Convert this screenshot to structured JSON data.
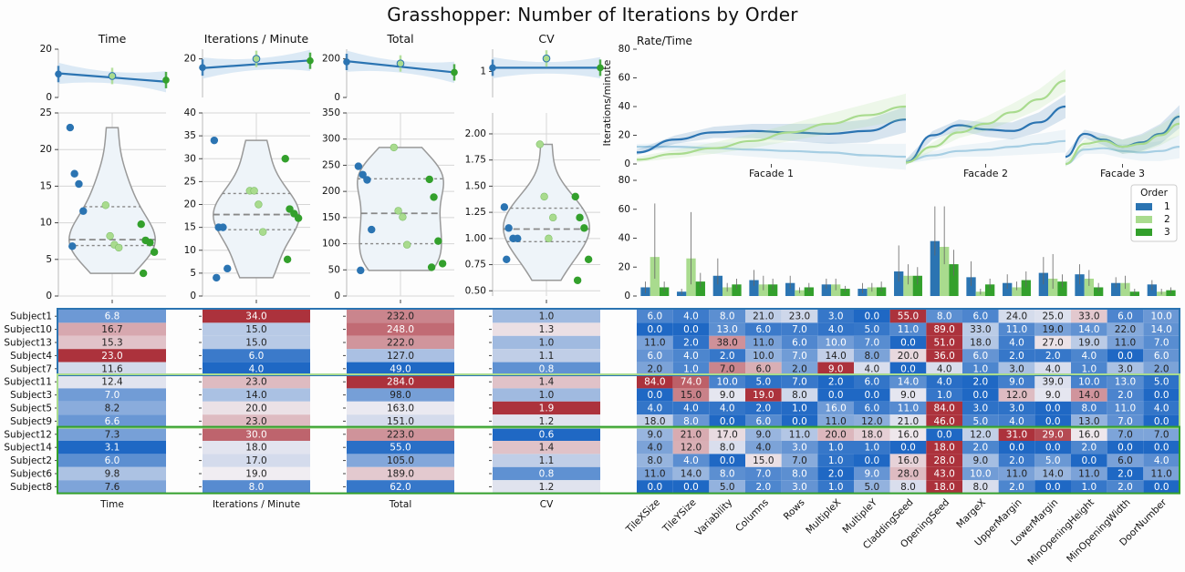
{
  "title": "Grasshopper: Number of Iterations by Order",
  "colors": {
    "order1": "#2b74b2",
    "order2": "#a9db8e",
    "order3": "#33a02c",
    "order1_light": "#a6cee3",
    "band": "#cfe1f2",
    "violin_fill": "#eef4f9",
    "violin_stroke": "#999999"
  },
  "chart_data": [
    {
      "type": "line",
      "title": "Time",
      "ylim": [
        0,
        20
      ],
      "yticks": [
        0,
        20
      ],
      "points": [
        {
          "x": 0,
          "y": 9.7
        },
        {
          "x": 1,
          "y": 8.9
        },
        {
          "x": 2,
          "y": 7.2
        }
      ],
      "trend": [
        10.0,
        6.5
      ]
    },
    {
      "type": "line",
      "title": "Iterations / Minute",
      "ylim": [
        0,
        25
      ],
      "yticks": [
        20
      ],
      "points": [
        {
          "x": 0,
          "y": 15.5
        },
        {
          "x": 1,
          "y": 20.0
        },
        {
          "x": 2,
          "y": 19.0
        }
      ],
      "trend": [
        15.2,
        19.2
      ]
    },
    {
      "type": "line",
      "title": "Total",
      "ylim": [
        0,
        250
      ],
      "yticks": [
        0,
        200
      ],
      "points": [
        {
          "x": 0,
          "y": 184
        },
        {
          "x": 1,
          "y": 176
        },
        {
          "x": 2,
          "y": 130
        }
      ],
      "trend": [
        188,
        130
      ]
    },
    {
      "type": "line",
      "title": "CV",
      "ylim": [
        0.3,
        1.6
      ],
      "yticks": [
        1
      ],
      "points": [
        {
          "x": 0,
          "y": 1.1
        },
        {
          "x": 1,
          "y": 1.35
        },
        {
          "x": 2,
          "y": 1.1
        }
      ],
      "trend": [
        1.1,
        1.1
      ]
    },
    {
      "type": "scatter",
      "subtype": "violin",
      "ylim": [
        0,
        25
      ],
      "yticks": [
        0,
        5,
        10,
        15,
        20,
        25
      ],
      "quartiles": [
        6.9,
        7.7,
        12.2
      ],
      "points": [
        {
          "order": 1,
          "values": [
            23.0,
            16.7,
            15.3,
            11.6,
            6.8
          ]
        },
        {
          "order": 2,
          "values": [
            12.4,
            8.2,
            7.0,
            6.6
          ]
        },
        {
          "order": 3,
          "values": [
            9.8,
            7.6,
            7.3,
            6.0,
            3.1
          ]
        }
      ]
    },
    {
      "type": "scatter",
      "subtype": "violin",
      "ylim": [
        0,
        40
      ],
      "yticks": [
        0,
        5,
        10,
        15,
        20,
        25,
        30,
        35,
        40
      ],
      "quartiles": [
        14.5,
        17.8,
        22.4
      ],
      "points": [
        {
          "order": 1,
          "values": [
            34.0,
            15.0,
            15.0,
            6.0,
            4.0
          ]
        },
        {
          "order": 2,
          "values": [
            23.0,
            23.0,
            20.0,
            14.0
          ]
        },
        {
          "order": 3,
          "values": [
            30.0,
            19.0,
            18.0,
            17.0,
            8.0
          ]
        }
      ]
    },
    {
      "type": "scatter",
      "subtype": "violin",
      "ylim": [
        0,
        350
      ],
      "yticks": [
        0,
        50,
        100,
        150,
        200,
        250,
        300,
        350
      ],
      "quartiles": [
        100,
        158,
        224
      ],
      "points": [
        {
          "order": 1,
          "values": [
            248.0,
            232.0,
            222.0,
            127.0,
            49.0
          ]
        },
        {
          "order": 2,
          "values": [
            284.0,
            163.0,
            151.0,
            98.0
          ]
        },
        {
          "order": 3,
          "values": [
            223.0,
            189.0,
            105.0,
            62.0,
            55.0
          ]
        }
      ]
    },
    {
      "type": "scatter",
      "subtype": "violin",
      "ylim": [
        0.45,
        2.2
      ],
      "yticks": [
        0.5,
        0.75,
        1.0,
        1.25,
        1.5,
        1.75,
        2.0
      ],
      "quartiles": [
        0.97,
        1.09,
        1.29
      ],
      "points": [
        {
          "order": 1,
          "values": [
            1.3,
            1.1,
            1.0,
            1.0,
            0.8
          ]
        },
        {
          "order": 2,
          "values": [
            1.9,
            1.4,
            1.0,
            1.2
          ]
        },
        {
          "order": 3,
          "values": [
            1.4,
            1.2,
            1.1,
            0.8,
            0.6
          ]
        }
      ]
    },
    {
      "type": "line",
      "title": "Rate/Time",
      "ylabel": "Iterations/minute",
      "ylim": [
        0,
        80
      ],
      "yticks": [
        0,
        20,
        40,
        60,
        80
      ],
      "facets": [
        "Facade 1",
        "Facade 2",
        "Facade 3"
      ],
      "series": [
        {
          "order": 1,
          "facets": [
            [
              8,
              17,
              22,
              23,
              22,
              21,
              23,
              31
            ],
            [
              1,
              20,
              27,
              24,
              23,
              29,
              40
            ],
            [
              5,
              21,
              17,
              12,
              15,
              21,
              33
            ]
          ]
        },
        {
          "order": 2,
          "facets": [
            [
              3,
              7,
              11,
              16,
              22,
              28,
              34,
              40
            ],
            [
              1,
              12,
              22,
              28,
              36,
              45,
              58
            ],
            [
              0,
              14,
              16,
              12,
              14,
              20,
              28
            ]
          ]
        },
        {
          "order": 3,
          "facets": [
            [
              12,
              12,
              11,
              10,
              9,
              8,
              6,
              5
            ],
            [
              2,
              6,
              9,
              10,
              12,
              14,
              16
            ],
            [
              0,
              10,
              11,
              9,
              8,
              9,
              12
            ]
          ]
        }
      ]
    },
    {
      "type": "bar",
      "ylim": [
        0,
        80
      ],
      "yticks": [
        0,
        20,
        40,
        60,
        80
      ],
      "legend_title": "Order",
      "legend": [
        "1",
        "2",
        "3"
      ],
      "legend_position": "right",
      "categories": [
        "TileXSize",
        "TileYSize",
        "Variability",
        "Columns",
        "Rows",
        "MultipleX",
        "MultipleY",
        "CladdingSeed",
        "OpeningSeed",
        "MargeX",
        "UpperMargin",
        "LowerMargin",
        "MinOpeningHeight",
        "MinOpeningWidth",
        "DoorNumber"
      ],
      "series": [
        {
          "name": "1",
          "values": [
            6.0,
            3.0,
            14.0,
            11.0,
            9.0,
            8.0,
            5.0,
            17.0,
            38.0,
            13.0,
            9.0,
            16.0,
            15.0,
            9.0,
            8.0
          ],
          "errors": [
            [
              2,
              10
            ],
            [
              1,
              5
            ],
            [
              8,
              26
            ],
            [
              7,
              18
            ],
            [
              5,
              14
            ],
            [
              5,
              12
            ],
            [
              2,
              9
            ],
            [
              10,
              35
            ],
            [
              28,
              62
            ],
            [
              7,
              24
            ],
            [
              5,
              15
            ],
            [
              8,
              27
            ],
            [
              8,
              22
            ],
            [
              6,
              13
            ],
            [
              4,
              11
            ]
          ]
        },
        {
          "name": "2",
          "values": [
            27.0,
            26.0,
            6.0,
            8.0,
            4.0,
            8.0,
            6.0,
            14.0,
            34.0,
            3.0,
            6.0,
            12.0,
            12.0,
            9.0,
            3.0
          ],
          "errors": [
            [
              12,
              64
            ],
            [
              8,
              58
            ],
            [
              3,
              9
            ],
            [
              4,
              14
            ],
            [
              2,
              6
            ],
            [
              4,
              12
            ],
            [
              3,
              9
            ],
            [
              8,
              22
            ],
            [
              22,
              62
            ],
            [
              1,
              5
            ],
            [
              4,
              10
            ],
            [
              5,
              29
            ],
            [
              7,
              18
            ],
            [
              5,
              14
            ],
            [
              1,
              5
            ]
          ]
        },
        {
          "name": "3",
          "values": [
            6.0,
            10.0,
            8.0,
            8.0,
            6.0,
            5.0,
            6.0,
            14.0,
            22.0,
            8.0,
            11.0,
            10.0,
            6.0,
            3.0,
            4.0
          ],
          "errors": [
            [
              3,
              10
            ],
            [
              6,
              16
            ],
            [
              5,
              12
            ],
            [
              4,
              12
            ],
            [
              3,
              9
            ],
            [
              3,
              7
            ],
            [
              3,
              10
            ],
            [
              8,
              20
            ],
            [
              14,
              32
            ],
            [
              5,
              12
            ],
            [
              6,
              17
            ],
            [
              6,
              15
            ],
            [
              3,
              9
            ],
            [
              1,
              5
            ],
            [
              2,
              6
            ]
          ]
        }
      ]
    },
    {
      "type": "heatmap",
      "subjects": [
        "Subject1",
        "Subject10",
        "Subject13",
        "Subject4",
        "Subject7",
        "Subject11",
        "Subject3",
        "Subject5",
        "Subject9",
        "Subject12",
        "Subject14",
        "Subject2",
        "Subject6",
        "Subject8"
      ],
      "groups": [
        {
          "order": 1,
          "rows": 5
        },
        {
          "order": 2,
          "rows": 4
        },
        {
          "order": 3,
          "rows": 5
        }
      ],
      "metric_columns": [
        "Time",
        "Iterations / Minute",
        "Total",
        "CV"
      ],
      "metrics": [
        [
          6.8,
          34.0,
          232.0,
          1.0
        ],
        [
          16.7,
          15.0,
          248.0,
          1.3
        ],
        [
          15.3,
          15.0,
          222.0,
          1.0
        ],
        [
          23.0,
          6.0,
          127.0,
          1.1
        ],
        [
          11.6,
          4.0,
          49.0,
          0.8
        ],
        [
          12.4,
          23.0,
          284.0,
          1.4
        ],
        [
          7.0,
          14.0,
          98.0,
          1.0
        ],
        [
          8.2,
          20.0,
          163.0,
          1.9
        ],
        [
          6.6,
          23.0,
          151.0,
          1.2
        ],
        [
          7.3,
          30.0,
          223.0,
          0.6
        ],
        [
          3.1,
          18.0,
          55.0,
          1.4
        ],
        [
          6.0,
          17.0,
          105.0,
          1.1
        ],
        [
          9.8,
          19.0,
          189.0,
          0.8
        ],
        [
          7.6,
          8.0,
          62.0,
          1.2
        ]
      ],
      "param_columns": [
        "TileXSize",
        "TileYSize",
        "Variability",
        "Columns",
        "Rows",
        "MultipleX",
        "MultipleY",
        "CladdingSeed",
        "OpeningSeed",
        "MargeX",
        "UpperMargin",
        "LowerMargin",
        "MinOpeningHeight",
        "MinOpeningWidth",
        "DoorNumber"
      ],
      "params": [
        [
          6.0,
          4.0,
          8.0,
          21.0,
          23.0,
          3.0,
          0.0,
          55.0,
          8.0,
          6.0,
          24.0,
          25.0,
          33.0,
          6.0,
          10.0
        ],
        [
          0.0,
          0.0,
          13.0,
          6.0,
          7.0,
          4.0,
          5.0,
          11.0,
          89.0,
          33.0,
          11.0,
          19.0,
          14.0,
          22.0,
          14.0
        ],
        [
          11.0,
          2.0,
          38.0,
          11.0,
          6.0,
          10.0,
          7.0,
          0.0,
          51.0,
          18.0,
          4.0,
          27.0,
          19.0,
          11.0,
          7.0
        ],
        [
          6.0,
          4.0,
          2.0,
          10.0,
          7.0,
          14.0,
          8.0,
          20.0,
          36.0,
          6.0,
          2.0,
          2.0,
          4.0,
          0.0,
          6.0
        ],
        [
          2.0,
          1.0,
          7.0,
          6.0,
          2.0,
          9.0,
          4.0,
          0.0,
          4.0,
          1.0,
          3.0,
          4.0,
          1.0,
          3.0,
          2.0
        ],
        [
          84.0,
          74.0,
          10.0,
          5.0,
          7.0,
          2.0,
          6.0,
          14.0,
          4.0,
          2.0,
          9.0,
          39.0,
          10.0,
          13.0,
          5.0
        ],
        [
          0.0,
          15.0,
          9.0,
          19.0,
          8.0,
          0.0,
          0.0,
          9.0,
          1.0,
          0.0,
          12.0,
          9.0,
          14.0,
          2.0,
          0.0
        ],
        [
          4.0,
          4.0,
          4.0,
          2.0,
          1.0,
          16.0,
          6.0,
          11.0,
          84.0,
          3.0,
          3.0,
          0.0,
          8.0,
          11.0,
          4.0
        ],
        [
          18.0,
          8.0,
          0.0,
          6.0,
          0.0,
          11.0,
          12.0,
          21.0,
          46.0,
          5.0,
          4.0,
          0.0,
          13.0,
          7.0,
          0.0
        ],
        [
          9.0,
          21.0,
          17.0,
          9.0,
          11.0,
          20.0,
          18.0,
          16.0,
          0.0,
          12.0,
          31.0,
          29.0,
          16.0,
          7.0,
          7.0
        ],
        [
          4.0,
          12.0,
          8.0,
          4.0,
          3.0,
          1.0,
          1.0,
          0.0,
          18.0,
          2.0,
          0.0,
          0.0,
          2.0,
          0.0,
          0.0
        ],
        [
          8.0,
          4.0,
          0.0,
          15.0,
          7.0,
          1.0,
          0.0,
          16.0,
          28.0,
          9.0,
          2.0,
          5.0,
          0.0,
          6.0,
          4.0
        ],
        [
          11.0,
          14.0,
          8.0,
          7.0,
          8.0,
          2.0,
          9.0,
          28.0,
          43.0,
          10.0,
          11.0,
          14.0,
          11.0,
          2.0,
          11.0
        ],
        [
          0.0,
          0.0,
          5.0,
          2.0,
          3.0,
          1.0,
          5.0,
          8.0,
          18.0,
          8.0,
          2.0,
          0.0,
          1.0,
          2.0,
          0.0
        ]
      ]
    }
  ]
}
